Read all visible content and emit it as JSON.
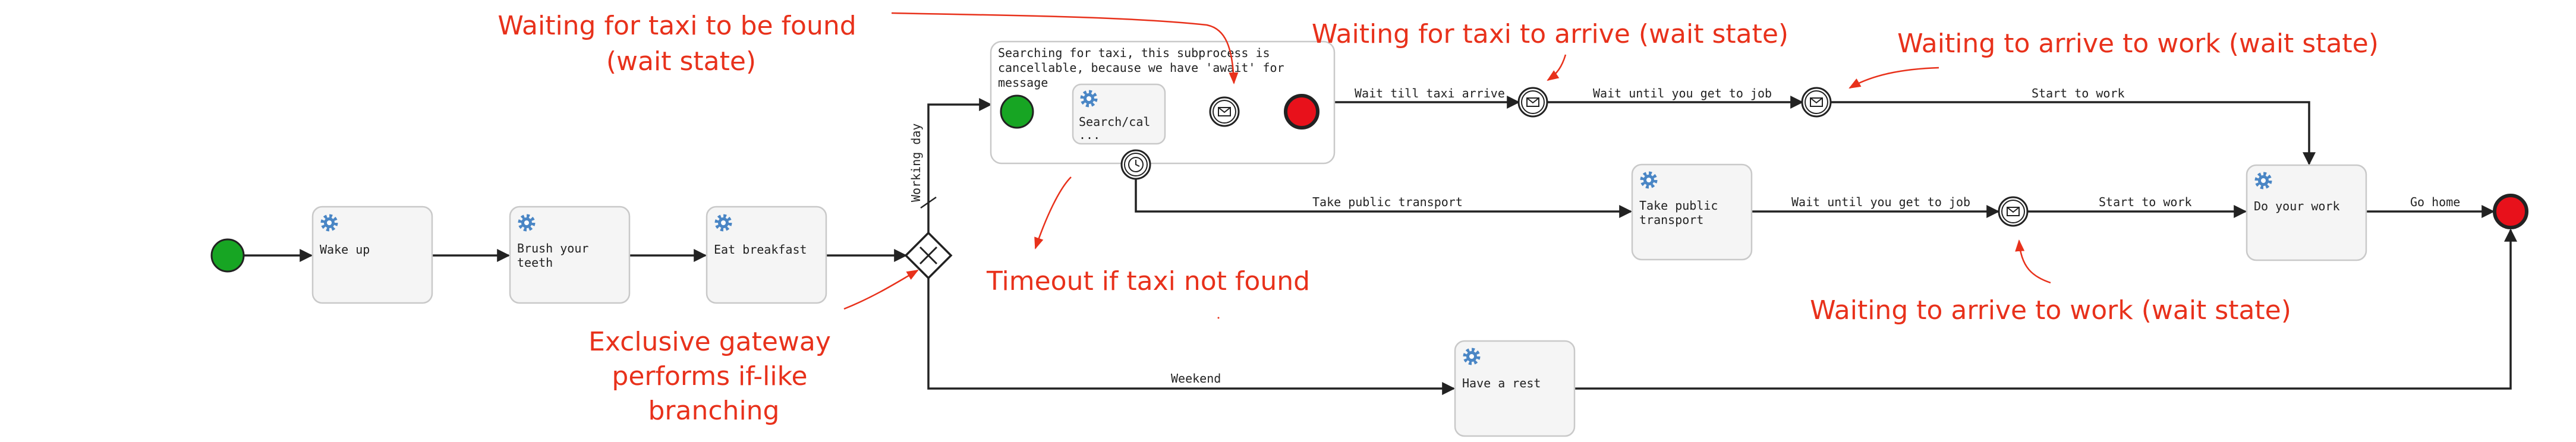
{
  "tasks": {
    "wake_up": "Wake up",
    "brush_teeth": [
      "Brush your",
      "teeth"
    ],
    "eat_breakfast": "Eat breakfast",
    "subprocess_label": [
      "Searching for taxi, this subprocess is",
      "cancellable, because we have 'await' for",
      "message"
    ],
    "search_call": [
      "Search/cal",
      "..."
    ],
    "take_public_transport": [
      "Take public",
      "transport"
    ],
    "do_your_work": "Do your work",
    "have_a_rest": "Have a rest"
  },
  "flows": {
    "working_day": "Working day",
    "wait_till_taxi_arrive": "Wait till taxi arrive",
    "wait_until_job_1": "Wait until you get to job",
    "start_to_work_1": "Start to work",
    "take_public_transport": "Take public transport",
    "wait_until_job_2": "Wait until you get to job",
    "start_to_work_2": "Start to work",
    "go_home": "Go home",
    "weekend": "Weekend"
  },
  "annotations": {
    "waiting_taxi_found": [
      "Waiting for taxi to be found",
      "(wait state)"
    ],
    "waiting_taxi_arrive": "Waiting for taxi to arrive (wait state)",
    "waiting_arrive_work_top": "Waiting to arrive to work (wait state)",
    "timeout_taxi": "Timeout if taxi not found",
    "exclusive_gateway": [
      "Exclusive gateway",
      "performs if-like",
      "branching"
    ],
    "waiting_arrive_work_bottom": "Waiting to arrive to work (wait state)"
  },
  "colors": {
    "start_event": "#17a523",
    "end_event": "#e8111b",
    "annotation": "#e8311b",
    "gear": "#4a86c5",
    "stroke": "#222222",
    "task_fill": "#f5f5f5",
    "task_border": "#c9c9c9"
  }
}
